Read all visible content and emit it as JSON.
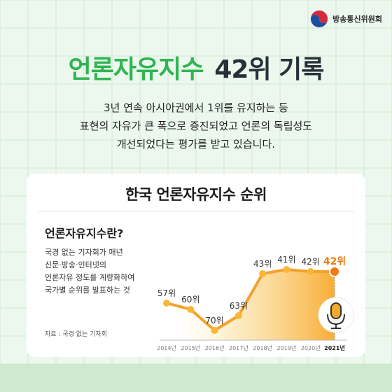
{
  "logo": {
    "org_name": "방송통신위원회"
  },
  "headline": {
    "part1": "언론자유지수",
    "part2": "42위 기록"
  },
  "description": [
    "3년 연속 아시아권에서 1위를 유지하는 등",
    "표현의 자유가 큰 폭으로 증진되었고 언론의 독립성도",
    "개선되었다는 평가를 받고 있습니다."
  ],
  "card": {
    "title": "한국 언론자유지수 순위",
    "definition_heading": "언론자유지수란?",
    "definition_lines": [
      "국경 없는 기자회가 매년",
      "신문·방송·인터넷의",
      "언론자유 정도를 계량화하여",
      "국가별 순위를 발표하는 것"
    ],
    "source": "자료 : 국경 없는 기자회"
  },
  "colors": {
    "brand_green": "#2fb552",
    "accent_orange": "#f07a12",
    "line_orange": "#f5a12a"
  },
  "icons": [
    "microphone-icon",
    "government-emblem-icon"
  ],
  "chart_data": {
    "type": "line",
    "x": [
      "2014년",
      "2015년",
      "2016년",
      "2017년",
      "2018년",
      "2019년",
      "2020년",
      "2021년"
    ],
    "values": [
      57,
      60,
      70,
      63,
      43,
      41,
      42,
      42
    ],
    "labels": [
      "57위",
      "60위",
      "70위",
      "63위",
      "43위",
      "41위",
      "42위",
      "42위"
    ],
    "y_inverted": true,
    "highlight_index": 7,
    "grid": false
  }
}
